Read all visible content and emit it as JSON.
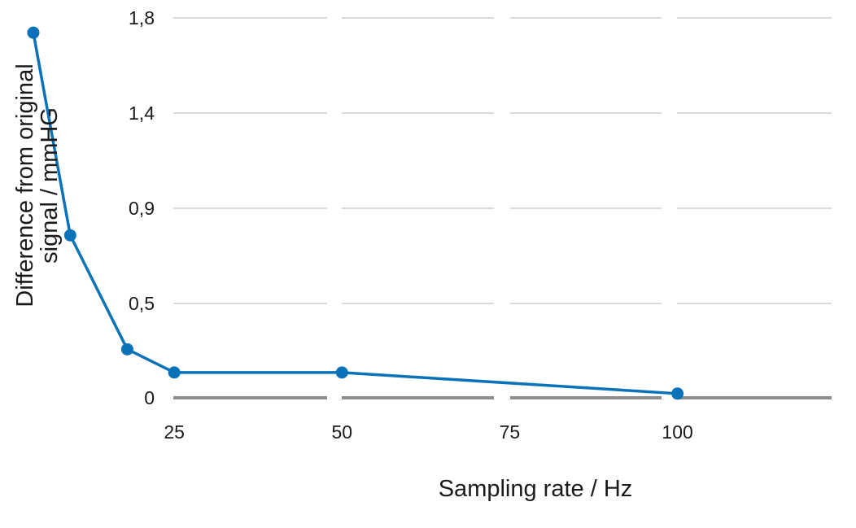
{
  "chart_data": {
    "type": "line",
    "xlabel": "Sampling rate / Hz",
    "ylabel_lines": [
      "Difference from original",
      "signal / mmHG"
    ],
    "x_ticks": [
      "25",
      "50",
      "75",
      "100"
    ],
    "x_tick_values": [
      25,
      50,
      75,
      100
    ],
    "y_ticks": [
      "1,8",
      "1,4",
      "0,9",
      "0,5",
      "0"
    ],
    "grid": true,
    "series": [
      {
        "color": "#0a72b9",
        "points": [
          {
            "x": 4,
            "y": 1.73
          },
          {
            "x": 9.5,
            "y": 0.77
          },
          {
            "x": 18,
            "y": 0.23
          },
          {
            "x": 25,
            "y": 0.12
          },
          {
            "x": 50,
            "y": 0.12
          },
          {
            "x": 100,
            "y": 0.02
          }
        ]
      }
    ]
  }
}
